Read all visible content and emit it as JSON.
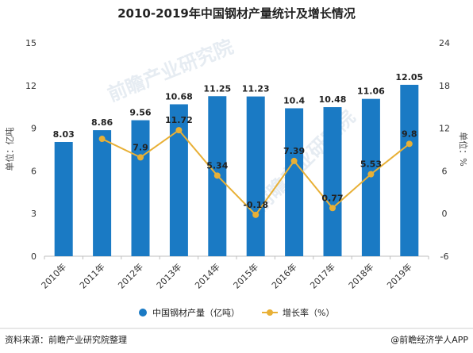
{
  "chart_data": {
    "type": "bar",
    "title": "2010-2019年中国钢材产量统计及增长情况",
    "categories": [
      "2010年",
      "2011年",
      "2012年",
      "2013年",
      "2014年",
      "2015年",
      "2016年",
      "2017年",
      "2018年",
      "2019年"
    ],
    "series": [
      {
        "name": "中国钢材产量（亿吨）",
        "type": "bar",
        "axis": "left",
        "color": "#1a7ac4",
        "values": [
          8.03,
          8.86,
          9.56,
          10.68,
          11.25,
          11.23,
          10.4,
          10.48,
          11.06,
          12.05
        ]
      },
      {
        "name": "增长率（%）",
        "type": "line",
        "axis": "right",
        "color": "#e8b036",
        "values": [
          null,
          10.5,
          7.9,
          11.72,
          5.34,
          -0.18,
          7.39,
          0.77,
          5.53,
          9.8
        ],
        "labels": [
          "",
          "",
          "7.9",
          "11.72",
          "5.34",
          "-0.18",
          "7.39",
          "0.77",
          "5.53",
          "9.8"
        ]
      }
    ],
    "ylabel": "单位：亿吨",
    "y2label": "单位：%",
    "ylim": [
      0,
      15
    ],
    "yticks": [
      0,
      3,
      6,
      9,
      12,
      15
    ],
    "y2lim": [
      -6,
      24
    ],
    "y2ticks": [
      -6,
      0,
      6,
      12,
      18,
      24
    ],
    "grid": false,
    "legend": "bottom"
  },
  "footer": {
    "source": "资料来源：前瞻产业研究院整理",
    "brand": "@前瞻经济学人APP"
  },
  "watermark": {
    "text": "前瞻产业研究院"
  }
}
